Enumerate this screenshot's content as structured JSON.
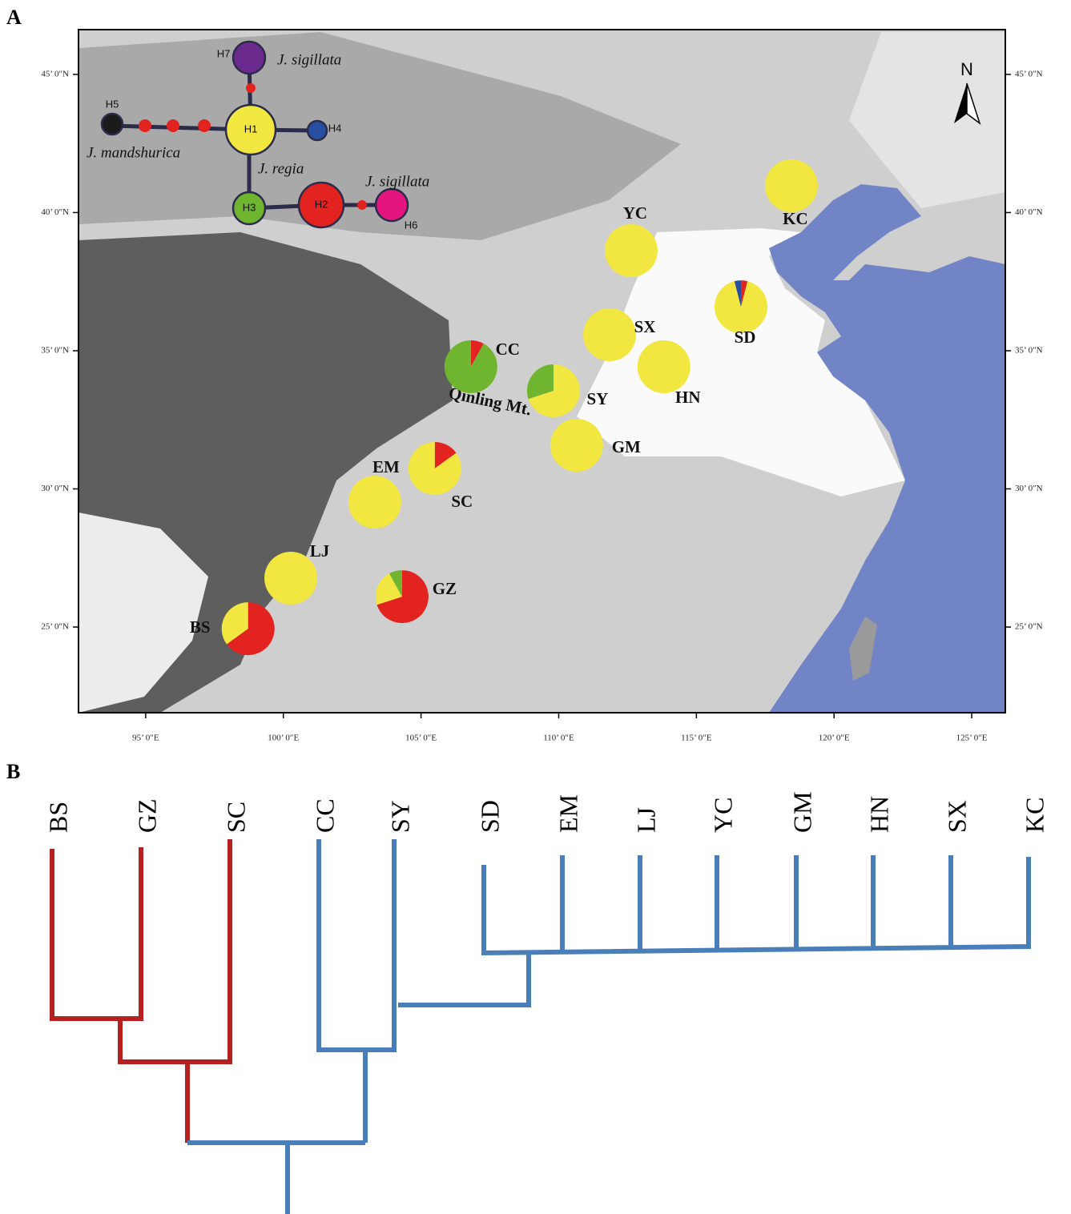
{
  "panel_labels": [
    "A",
    "B"
  ],
  "map": {
    "xlim": [
      92.56,
      126.22
    ],
    "ylim": [
      21.9,
      46.62
    ],
    "xticks": [
      {
        "value": 95,
        "label": "95’ 0″E"
      },
      {
        "value": 100,
        "label": "100’ 0″E"
      },
      {
        "value": 105,
        "label": "105’ 0″E"
      },
      {
        "value": 110,
        "label": "110’ 0″E"
      },
      {
        "value": 115,
        "label": "115’ 0″E"
      },
      {
        "value": 120,
        "label": "120’ 0″E"
      },
      {
        "value": 125,
        "label": "125’ 0″E"
      }
    ],
    "yticks": [
      {
        "value": 25,
        "label": "25’ 0″N"
      },
      {
        "value": 30,
        "label": "30’ 0″N"
      },
      {
        "value": 35,
        "label": "35’ 0″N"
      },
      {
        "value": 40,
        "label": "40’ 0″N"
      },
      {
        "value": 45,
        "label": "45’ 0″N"
      }
    ],
    "haplotypes": [
      {
        "name": "H1",
        "color": "#f2e640"
      },
      {
        "name": "H2",
        "color": "#e3231f"
      },
      {
        "name": "H3",
        "color": "#6fb52f"
      },
      {
        "name": "H4",
        "color": "#2a4ea0"
      },
      {
        "name": "H5",
        "color": "#1a1a1a"
      },
      {
        "name": "H6",
        "color": "#e5157f"
      },
      {
        "name": "H7",
        "color": "#6a2a8e"
      }
    ],
    "sites": [
      {
        "name": "KC",
        "lon": 118.45,
        "lat": 40.97,
        "values": [
          100,
          0,
          0,
          0,
          0,
          0,
          0
        ]
      },
      {
        "name": "YC",
        "lon": 112.63,
        "lat": 38.62,
        "values": [
          100,
          0,
          0,
          0,
          0,
          0,
          0
        ]
      },
      {
        "name": "SD",
        "lon": 116.62,
        "lat": 36.59,
        "values": [
          92,
          4,
          0,
          4,
          0,
          0,
          0
        ]
      },
      {
        "name": "SX",
        "lon": 111.85,
        "lat": 35.58,
        "values": [
          100,
          0,
          0,
          0,
          0,
          0,
          0
        ]
      },
      {
        "name": "HN",
        "lon": 113.82,
        "lat": 34.42,
        "values": [
          100,
          0,
          0,
          0,
          0,
          0,
          0
        ]
      },
      {
        "name": "CC",
        "lon": 106.81,
        "lat": 34.42,
        "values": [
          0,
          8,
          92,
          0,
          0,
          0,
          0
        ]
      },
      {
        "name": "SY",
        "lon": 109.81,
        "lat": 33.55,
        "values": [
          70,
          0,
          30,
          0,
          0,
          0,
          0
        ]
      },
      {
        "name": "GM",
        "lon": 110.65,
        "lat": 31.58,
        "values": [
          100,
          0,
          0,
          0,
          0,
          0,
          0
        ]
      },
      {
        "name": "SC",
        "lon": 105.5,
        "lat": 30.74,
        "values": [
          85,
          15,
          0,
          0,
          0,
          0,
          0
        ]
      },
      {
        "name": "EM",
        "lon": 103.32,
        "lat": 29.52,
        "values": [
          100,
          0,
          0,
          0,
          0,
          0,
          0
        ]
      },
      {
        "name": "LJ",
        "lon": 100.27,
        "lat": 26.77,
        "values": [
          100,
          0,
          0,
          0,
          0,
          0,
          0
        ]
      },
      {
        "name": "GZ",
        "lon": 104.31,
        "lat": 26.1,
        "values": [
          22,
          70,
          8,
          0,
          0,
          0,
          0
        ]
      },
      {
        "name": "BS",
        "lon": 98.72,
        "lat": 24.94,
        "values": [
          35,
          65,
          0,
          0,
          0,
          0,
          0
        ]
      }
    ],
    "region_label": "Qinling Mt.",
    "north": "N",
    "species": [
      "J. sigillata",
      "J. mandshurica",
      "J. regia",
      "J. sigillata"
    ]
  },
  "dendrogram": {
    "leaves": [
      "BS",
      "GZ",
      "SC",
      "CC",
      "SY",
      "SD",
      "EM",
      "LJ",
      "YC",
      "GM",
      "HN",
      "SX",
      "KC"
    ]
  }
}
